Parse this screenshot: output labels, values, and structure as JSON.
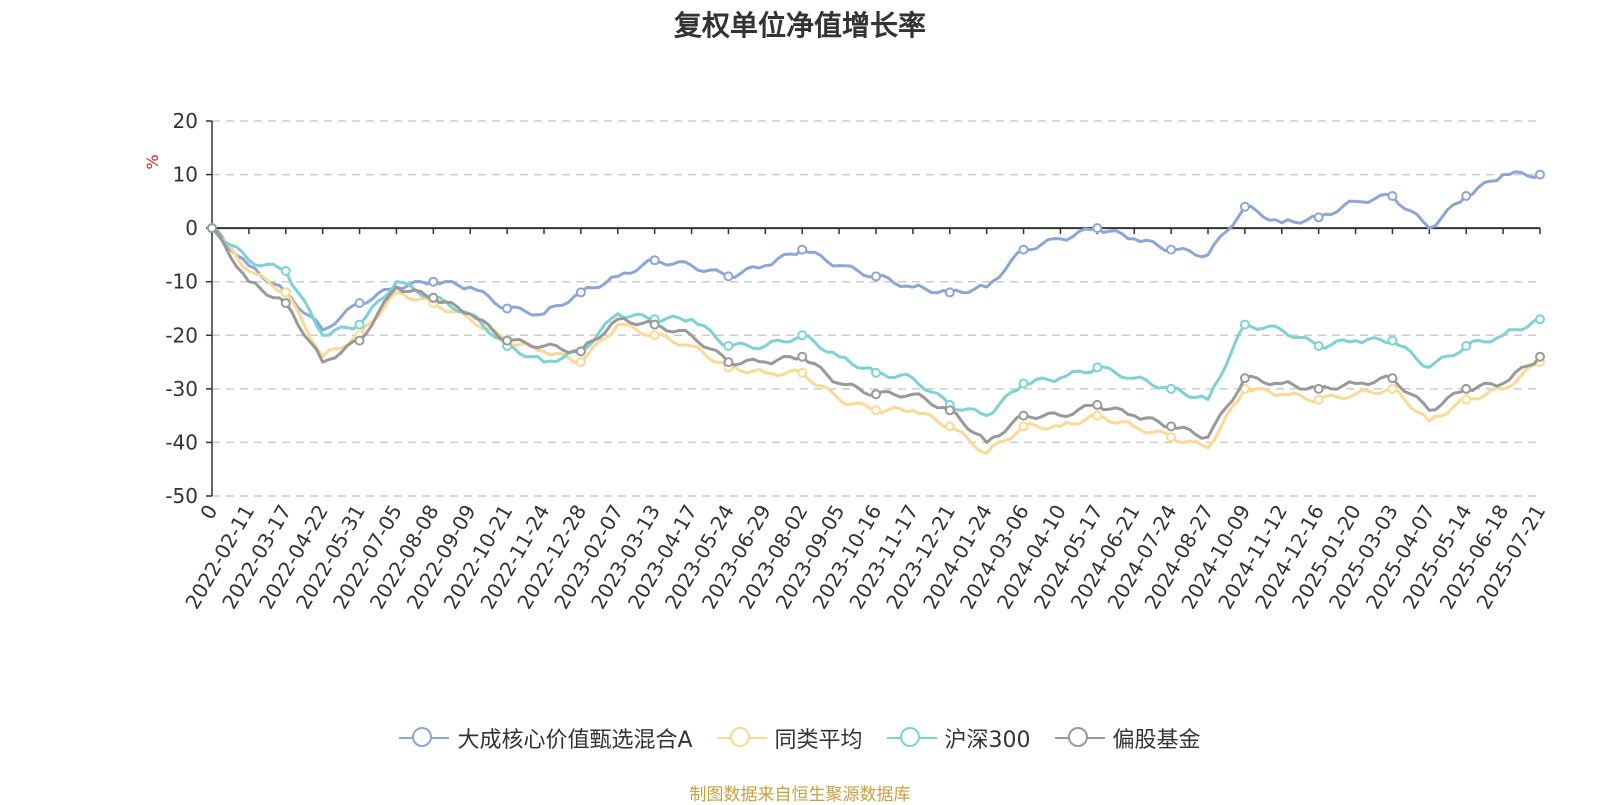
{
  "chart_data": {
    "type": "line",
    "title": "复权单位净值增长率",
    "ylabel": "%",
    "ylim": [
      -50,
      20
    ],
    "yticks": [
      20,
      10,
      0,
      -10,
      -20,
      -30,
      -40,
      -50
    ],
    "grid": true,
    "legend_position": "bottom",
    "x_ticks": [
      "0",
      "2022-02-11",
      "2022-03-17",
      "2022-04-22",
      "2022-05-31",
      "2022-07-05",
      "2022-08-08",
      "2022-09-09",
      "2022-10-21",
      "2022-11-24",
      "2022-12-28",
      "2023-02-07",
      "2023-03-13",
      "2023-04-17",
      "2023-05-24",
      "2023-06-29",
      "2023-08-02",
      "2023-09-05",
      "2023-10-16",
      "2023-11-17",
      "2023-12-21",
      "2024-01-24",
      "2024-03-06",
      "2024-04-10",
      "2024-05-17",
      "2024-06-21",
      "2024-07-24",
      "2024-08-27",
      "2024-10-09",
      "2024-11-12",
      "2024-12-16",
      "2025-01-20",
      "2025-03-03",
      "2025-04-07",
      "2025-05-14",
      "2025-06-18",
      "2025-07-21"
    ],
    "series": [
      {
        "name": "大成核心价值甄选混合A",
        "color": "#8ca6d6",
        "values": [
          0,
          -7,
          -12,
          -19,
          -14,
          -11,
          -10,
          -11,
          -15,
          -16,
          -12,
          -9,
          -6,
          -7,
          -9,
          -7,
          -4,
          -7,
          -9,
          -11,
          -12,
          -11,
          -4,
          -2,
          0,
          -2,
          -4,
          -5,
          4,
          1,
          2,
          5,
          6,
          0,
          6,
          10,
          10
        ]
      },
      {
        "name": "同类平均",
        "color": "#fcd994",
        "values": [
          0,
          -8,
          -12,
          -24,
          -20,
          -12,
          -14,
          -17,
          -21,
          -23,
          -25,
          -18,
          -20,
          -22,
          -26,
          -27,
          -27,
          -32,
          -34,
          -34,
          -37,
          -42,
          -37,
          -37,
          -35,
          -37,
          -39,
          -41,
          -30,
          -31,
          -32,
          -31,
          -30,
          -36,
          -32,
          -30,
          -25
        ]
      },
      {
        "name": "沪深300",
        "color": "#7ed1d4",
        "values": [
          0,
          -6,
          -8,
          -20,
          -18,
          -10,
          -13,
          -16,
          -22,
          -25,
          -23,
          -16,
          -17,
          -17,
          -22,
          -22,
          -20,
          -24,
          -27,
          -28,
          -33,
          -35,
          -29,
          -28,
          -26,
          -28,
          -30,
          -32,
          -18,
          -19,
          -22,
          -21,
          -21,
          -26,
          -22,
          -20,
          -17
        ]
      },
      {
        "name": "偏股基金",
        "color": "#999999",
        "values": [
          0,
          -10,
          -14,
          -25,
          -21,
          -11,
          -13,
          -16,
          -21,
          -22,
          -23,
          -17,
          -18,
          -20,
          -25,
          -25,
          -24,
          -29,
          -31,
          -31,
          -34,
          -40,
          -35,
          -35,
          -33,
          -35,
          -37,
          -39,
          -28,
          -29,
          -30,
          -29,
          -28,
          -34,
          -30,
          -29,
          -24
        ]
      }
    ]
  },
  "legend": {
    "s1": "大成核心价值甄选混合A",
    "s2": "同类平均",
    "s3": "沪深300",
    "s4": "偏股基金"
  },
  "source_note": "制图数据来自恒生聚源数据库"
}
